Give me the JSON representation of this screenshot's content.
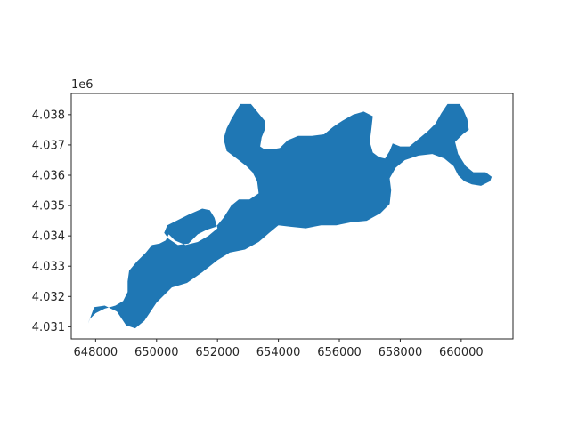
{
  "chart_data": {
    "type": "map",
    "title": "",
    "xlabel": "",
    "ylabel": "",
    "xlim": [
      647200,
      661700
    ],
    "ylim": [
      4030600,
      4038700
    ],
    "x_ticks": [
      648000,
      650000,
      652000,
      654000,
      656000,
      658000,
      660000
    ],
    "x_tick_labels": [
      "648000",
      "650000",
      "652000",
      "654000",
      "656000",
      "658000",
      "660000"
    ],
    "y_ticks": [
      4031000,
      4032000,
      4033000,
      4034000,
      4035000,
      4036000,
      4037000,
      4038000
    ],
    "y_tick_labels": [
      "4.031",
      "4.032",
      "4.033",
      "4.034",
      "4.035",
      "4.036",
      "4.037",
      "4.038"
    ],
    "y_offset_label": "1e6",
    "grid": false,
    "fill_color": "#1f77b4",
    "shape_outline": [
      [
        647750,
        4031100
      ],
      [
        647900,
        4031300
      ],
      [
        648000,
        4031700
      ],
      [
        648350,
        4031650
      ],
      [
        648700,
        4031450
      ],
      [
        649050,
        4031600
      ],
      [
        649050,
        4031400
      ],
      [
        648900,
        4031150
      ],
      [
        649100,
        4030950
      ],
      [
        649400,
        4031050
      ],
      [
        649700,
        4031350
      ],
      [
        650000,
        4031800
      ],
      [
        650400,
        4032300
      ],
      [
        650900,
        4032500
      ],
      [
        651400,
        4032800
      ],
      [
        651900,
        4033200
      ],
      [
        652300,
        4033450
      ],
      [
        652700,
        4033550
      ],
      [
        653100,
        4033700
      ],
      [
        653500,
        4033900
      ],
      [
        653800,
        4034200
      ],
      [
        654400,
        4034300
      ],
      [
        654900,
        4034400
      ],
      [
        655400,
        4034350
      ],
      [
        655900,
        4034400
      ],
      [
        656500,
        4034500
      ],
      [
        657000,
        4034600
      ],
      [
        657400,
        4034900
      ],
      [
        657700,
        4035200
      ],
      [
        657650,
        4035600
      ],
      [
        657600,
        4036000
      ],
      [
        657850,
        4036450
      ],
      [
        658100,
        4036600
      ],
      [
        658500,
        4036700
      ],
      [
        659100,
        4036800
      ],
      [
        659700,
        4036650
      ],
      [
        660000,
        4036200
      ],
      [
        660450,
        4036100
      ],
      [
        660800,
        4036050
      ],
      [
        661000,
        4035950
      ],
      [
        660850,
        4035750
      ],
      [
        660500,
        4035650
      ],
      [
        660100,
        4035750
      ],
      [
        659850,
        4035950
      ],
      [
        659700,
        4036350
      ],
      [
        659550,
        4036450
      ],
      [
        659150,
        4036650
      ],
      [
        658550,
        4036650
      ],
      [
        658250,
        4036550
      ],
      [
        658000,
        4036500
      ],
      [
        657750,
        4036300
      ],
      [
        657650,
        4035950
      ],
      [
        657700,
        4035500
      ],
      [
        657600,
        4035100
      ],
      [
        657250,
        4034850
      ],
      [
        656800,
        4034650
      ],
      [
        656300,
        4034550
      ],
      [
        655800,
        4034500
      ],
      [
        655300,
        4034450
      ],
      [
        654900,
        4034450
      ],
      [
        654300,
        4034350
      ],
      [
        653900,
        4034450
      ],
      [
        653550,
        4034250
      ],
      [
        653200,
        4034050
      ],
      [
        652750,
        4033850
      ],
      [
        652300,
        4033750
      ],
      [
        651800,
        4033650
      ],
      [
        651500,
        4033450
      ],
      [
        651100,
        4033150
      ],
      [
        650800,
        4032900
      ],
      [
        650400,
        4032750
      ],
      [
        650000,
        4032600
      ],
      [
        649850,
        4032750
      ],
      [
        649650,
        4032650
      ],
      [
        649450,
        4032800
      ],
      [
        649250,
        4032850
      ],
      [
        649150,
        4032650
      ],
      [
        649200,
        4032300
      ],
      [
        649100,
        4031950
      ],
      [
        648900,
        4031750
      ],
      [
        648600,
        4031650
      ],
      [
        648400,
        4031500
      ],
      [
        648100,
        4031250
      ],
      [
        647900,
        4031150
      ]
    ],
    "shape_main": [
      [
        647750,
        4031100
      ],
      [
        647850,
        4031350
      ],
      [
        647950,
        4031650
      ],
      [
        648150,
        4031700
      ],
      [
        648450,
        4031650
      ],
      [
        648650,
        4031450
      ],
      [
        648800,
        4031250
      ],
      [
        649000,
        4031000
      ],
      [
        649250,
        4030950
      ],
      [
        649500,
        4031100
      ],
      [
        649700,
        4031350
      ],
      [
        650050,
        4031850
      ],
      [
        650450,
        4032250
      ],
      [
        650800,
        4032350
      ],
      [
        651250,
        4032600
      ],
      [
        651600,
        4032850
      ],
      [
        651950,
        4033150
      ],
      [
        652300,
        4033400
      ],
      [
        652700,
        4033500
      ],
      [
        653100,
        4033650
      ],
      [
        653500,
        4033900
      ],
      [
        653800,
        4034250
      ],
      [
        654200,
        4034250
      ],
      [
        654600,
        4034200
      ],
      [
        655000,
        4034250
      ],
      [
        655400,
        4034350
      ],
      [
        655900,
        4034350
      ],
      [
        656400,
        4034500
      ],
      [
        656900,
        4034550
      ],
      [
        657300,
        4034750
      ],
      [
        657550,
        4034950
      ],
      [
        657750,
        4035250
      ],
      [
        657700,
        4035650
      ],
      [
        657650,
        4035950
      ],
      [
        657850,
        4036250
      ],
      [
        658150,
        4036500
      ],
      [
        658550,
        4036650
      ],
      [
        659050,
        4036700
      ],
      [
        659450,
        4036600
      ],
      [
        659750,
        4036400
      ],
      [
        659900,
        4036200
      ],
      [
        660100,
        4035950
      ],
      [
        660300,
        4036100
      ],
      [
        660700,
        4036050
      ],
      [
        661000,
        4035950
      ],
      [
        660900,
        4035750
      ],
      [
        660600,
        4035650
      ],
      [
        660250,
        4035700
      ],
      [
        659950,
        4035900
      ],
      [
        659800,
        4036250
      ],
      [
        659600,
        4036500
      ],
      [
        659250,
        4036650
      ],
      [
        658850,
        4036700
      ],
      [
        658450,
        4036650
      ],
      [
        658150,
        4036450
      ],
      [
        657950,
        4036200
      ],
      [
        657800,
        4035900
      ],
      [
        657850,
        4035500
      ],
      [
        657700,
        4035100
      ],
      [
        657350,
        4034800
      ],
      [
        656900,
        4034600
      ],
      [
        656400,
        4034450
      ],
      [
        655900,
        4034400
      ],
      [
        655350,
        4034400
      ],
      [
        654800,
        4034350
      ],
      [
        654300,
        4034300
      ],
      [
        653850,
        4034350
      ]
    ],
    "main_region": [
      [
        647750,
        4031100
      ],
      [
        647950,
        4031650
      ],
      [
        648300,
        4031700
      ],
      [
        648700,
        4031500
      ],
      [
        649000,
        4031050
      ],
      [
        649300,
        4030950
      ],
      [
        649600,
        4031200
      ],
      [
        650000,
        4031800
      ],
      [
        650500,
        4032300
      ],
      [
        651000,
        4032450
      ],
      [
        651500,
        4032800
      ],
      [
        652000,
        4033200
      ],
      [
        652400,
        4033450
      ],
      [
        652900,
        4033550
      ],
      [
        653350,
        4033800
      ],
      [
        653700,
        4034100
      ],
      [
        654000,
        4034350
      ],
      [
        654400,
        4034300
      ],
      [
        654900,
        4034250
      ],
      [
        655400,
        4034350
      ],
      [
        655900,
        4034350
      ],
      [
        656400,
        4034450
      ],
      [
        656900,
        4034500
      ],
      [
        657350,
        4034750
      ],
      [
        657650,
        4035050
      ],
      [
        657700,
        4035500
      ],
      [
        657650,
        4035900
      ],
      [
        657850,
        4036250
      ],
      [
        658150,
        4036500
      ],
      [
        658600,
        4036650
      ],
      [
        659050,
        4036700
      ],
      [
        659450,
        4036550
      ],
      [
        659750,
        4036300
      ],
      [
        659900,
        4036000
      ],
      [
        660100,
        4035800
      ],
      [
        660350,
        4035700
      ],
      [
        660650,
        4035650
      ],
      [
        660950,
        4035800
      ],
      [
        661000,
        4035950
      ],
      [
        660800,
        4036100
      ],
      [
        660400,
        4036100
      ],
      [
        660150,
        4036300
      ],
      [
        659900,
        4036700
      ],
      [
        659800,
        4037100
      ],
      [
        660050,
        4037350
      ],
      [
        660250,
        4037500
      ],
      [
        660200,
        4037850
      ],
      [
        660050,
        4038200
      ],
      [
        659950,
        4038350
      ],
      [
        659550,
        4038350
      ],
      [
        659350,
        4038050
      ],
      [
        659150,
        4037700
      ],
      [
        658900,
        4037450
      ],
      [
        658600,
        4037200
      ],
      [
        658300,
        4036950
      ],
      [
        658000,
        4036950
      ],
      [
        657750,
        4037050
      ],
      [
        657650,
        4036800
      ],
      [
        657500,
        4036550
      ],
      [
        657300,
        4036600
      ],
      [
        657100,
        4036750
      ],
      [
        657000,
        4037100
      ],
      [
        657050,
        4037500
      ],
      [
        657100,
        4037950
      ],
      [
        656800,
        4038100
      ],
      [
        656450,
        4038000
      ],
      [
        656100,
        4037800
      ],
      [
        655800,
        4037600
      ],
      [
        655500,
        4037350
      ],
      [
        655100,
        4037300
      ],
      [
        654650,
        4037300
      ],
      [
        654300,
        4037150
      ],
      [
        654050,
        4036900
      ],
      [
        653800,
        4036850
      ],
      [
        653550,
        4036850
      ],
      [
        653400,
        4036950
      ],
      [
        653450,
        4037250
      ],
      [
        653550,
        4037500
      ],
      [
        653550,
        4037800
      ],
      [
        653300,
        4038100
      ],
      [
        653100,
        4038350
      ],
      [
        652750,
        4038350
      ],
      [
        652600,
        4038100
      ],
      [
        652450,
        4037850
      ],
      [
        652300,
        4037550
      ],
      [
        652200,
        4037200
      ],
      [
        652300,
        4036800
      ],
      [
        652700,
        4036500
      ],
      [
        652950,
        4036300
      ],
      [
        653150,
        4036100
      ],
      [
        653300,
        4035800
      ],
      [
        653350,
        4035400
      ],
      [
        653050,
        4035200
      ],
      [
        652700,
        4035200
      ],
      [
        652450,
        4035000
      ],
      [
        652200,
        4034600
      ],
      [
        651950,
        4034300
      ],
      [
        651650,
        4034200
      ],
      [
        651350,
        4034050
      ],
      [
        651050,
        4033750
      ],
      [
        650700,
        4033700
      ],
      [
        650400,
        4033900
      ],
      [
        650250,
        4034100
      ],
      [
        650350,
        4034350
      ],
      [
        650650,
        4034500
      ],
      [
        651050,
        4034700
      ],
      [
        651500,
        4034900
      ],
      [
        651750,
        4034850
      ],
      [
        651900,
        4034600
      ],
      [
        652000,
        4034250
      ],
      [
        651700,
        4034000
      ],
      [
        651350,
        4033800
      ],
      [
        650950,
        4033700
      ],
      [
        650600,
        4033850
      ],
      [
        650400,
        4034050
      ],
      [
        650300,
        4033850
      ],
      [
        650100,
        4033750
      ],
      [
        649850,
        4033700
      ],
      [
        649650,
        4033450
      ],
      [
        649350,
        4033150
      ],
      [
        649100,
        4032850
      ],
      [
        649050,
        4032500
      ],
      [
        649050,
        4032150
      ],
      [
        648900,
        4031850
      ],
      [
        648650,
        4031700
      ],
      [
        648300,
        4031600
      ],
      [
        648000,
        4031450
      ],
      [
        647800,
        4031250
      ]
    ]
  }
}
